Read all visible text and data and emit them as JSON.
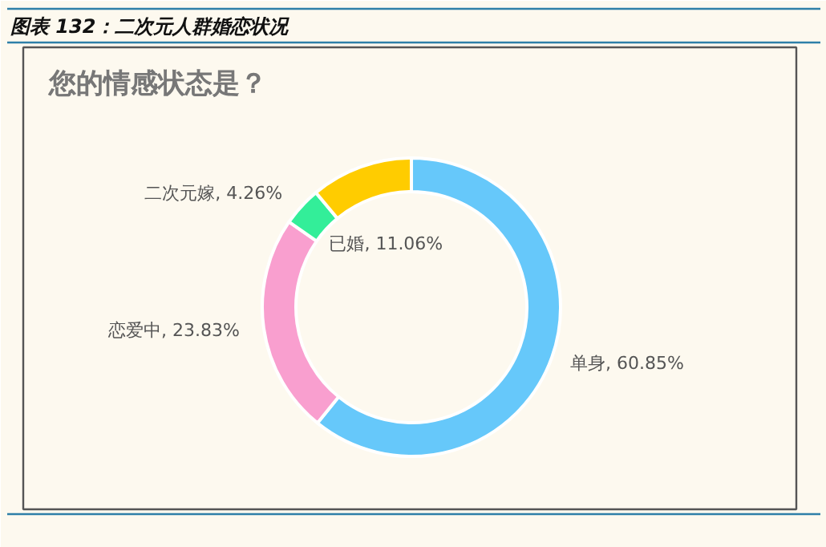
{
  "chart_data": {
    "type": "donut",
    "title": "图表 132：二次元人群婚恋状况",
    "subtitle": "您的情感状态是？",
    "categories": [
      "单身",
      "恋爱中",
      "二次元嫁",
      "已婚"
    ],
    "values": [
      60.85,
      23.83,
      4.26,
      11.06
    ],
    "colors": [
      "#66c8fa",
      "#f99fcf",
      "#33ee99",
      "#ffcc00"
    ],
    "value_labels": [
      ", 60.85%",
      ", 23.83%",
      ", 4.26%",
      ", 11.06%"
    ]
  }
}
